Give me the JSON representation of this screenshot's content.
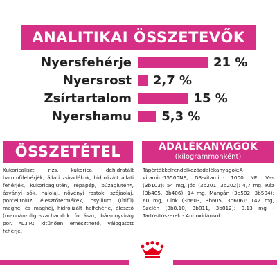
{
  "title": "ANALITIKAI ÖSSZETEVŐK",
  "colors": {
    "accent": "#d62f86",
    "brand_red": "#e2001a"
  },
  "analytics": [
    {
      "label": "Nyersfehérje",
      "value_text": "21 %",
      "value": 21
    },
    {
      "label": "Nyersrost",
      "value_text": "2,7 %",
      "value": 2.7
    },
    {
      "label": "Zsírtartalom",
      "value_text": "15 %",
      "value": 15
    },
    {
      "label": "Nyershamu",
      "value_text": "5,3 %",
      "value": 5.3
    }
  ],
  "composition": {
    "heading": "ÖSSZETÉTEL",
    "text": "Kukoricaliszt, rizs, kukorica, dehidratált baromfifehérjék, állati zsiradékok, hidrolizált állati fehérjék, kukoricaglutén, répapép, búzaglutén*, ásványi sók, halolaj, növényi rostok, szójaolaj, porcelltolúz, élesztőtermékek, psyllium (útifű) maghéj és maghéj, hidrolizált halfehérje, élesztő (mannán-oligoszacharidok forrása), bársonyvirág por. *L.I.P.: kitűnően emészthető, válogatott fehérje."
  },
  "additives": {
    "heading": "ADALÉKANYAGOK",
    "subheading": "(kilogrammonként)",
    "text": "Tápértékkelrendelkezőadalékanyagok:A-vitamin:15500NE, D3-vitamin: 1000 NE, Vas (3b103): 54 mg, Jód (3b201, 3b202): 4,7 mg. Réz (3b405, 3b406): 14 mg, Mangán (3b502, 3b504): 60 mg, Cink (3b603, 3b605, 3b606): 142 mg, Szelén (3b8.10, 3b811, 3b812): 0.13 mg - Tartósítószerek - Antioxidánsok."
  },
  "logo": {
    "name": "royal-canin-crown-logo"
  }
}
